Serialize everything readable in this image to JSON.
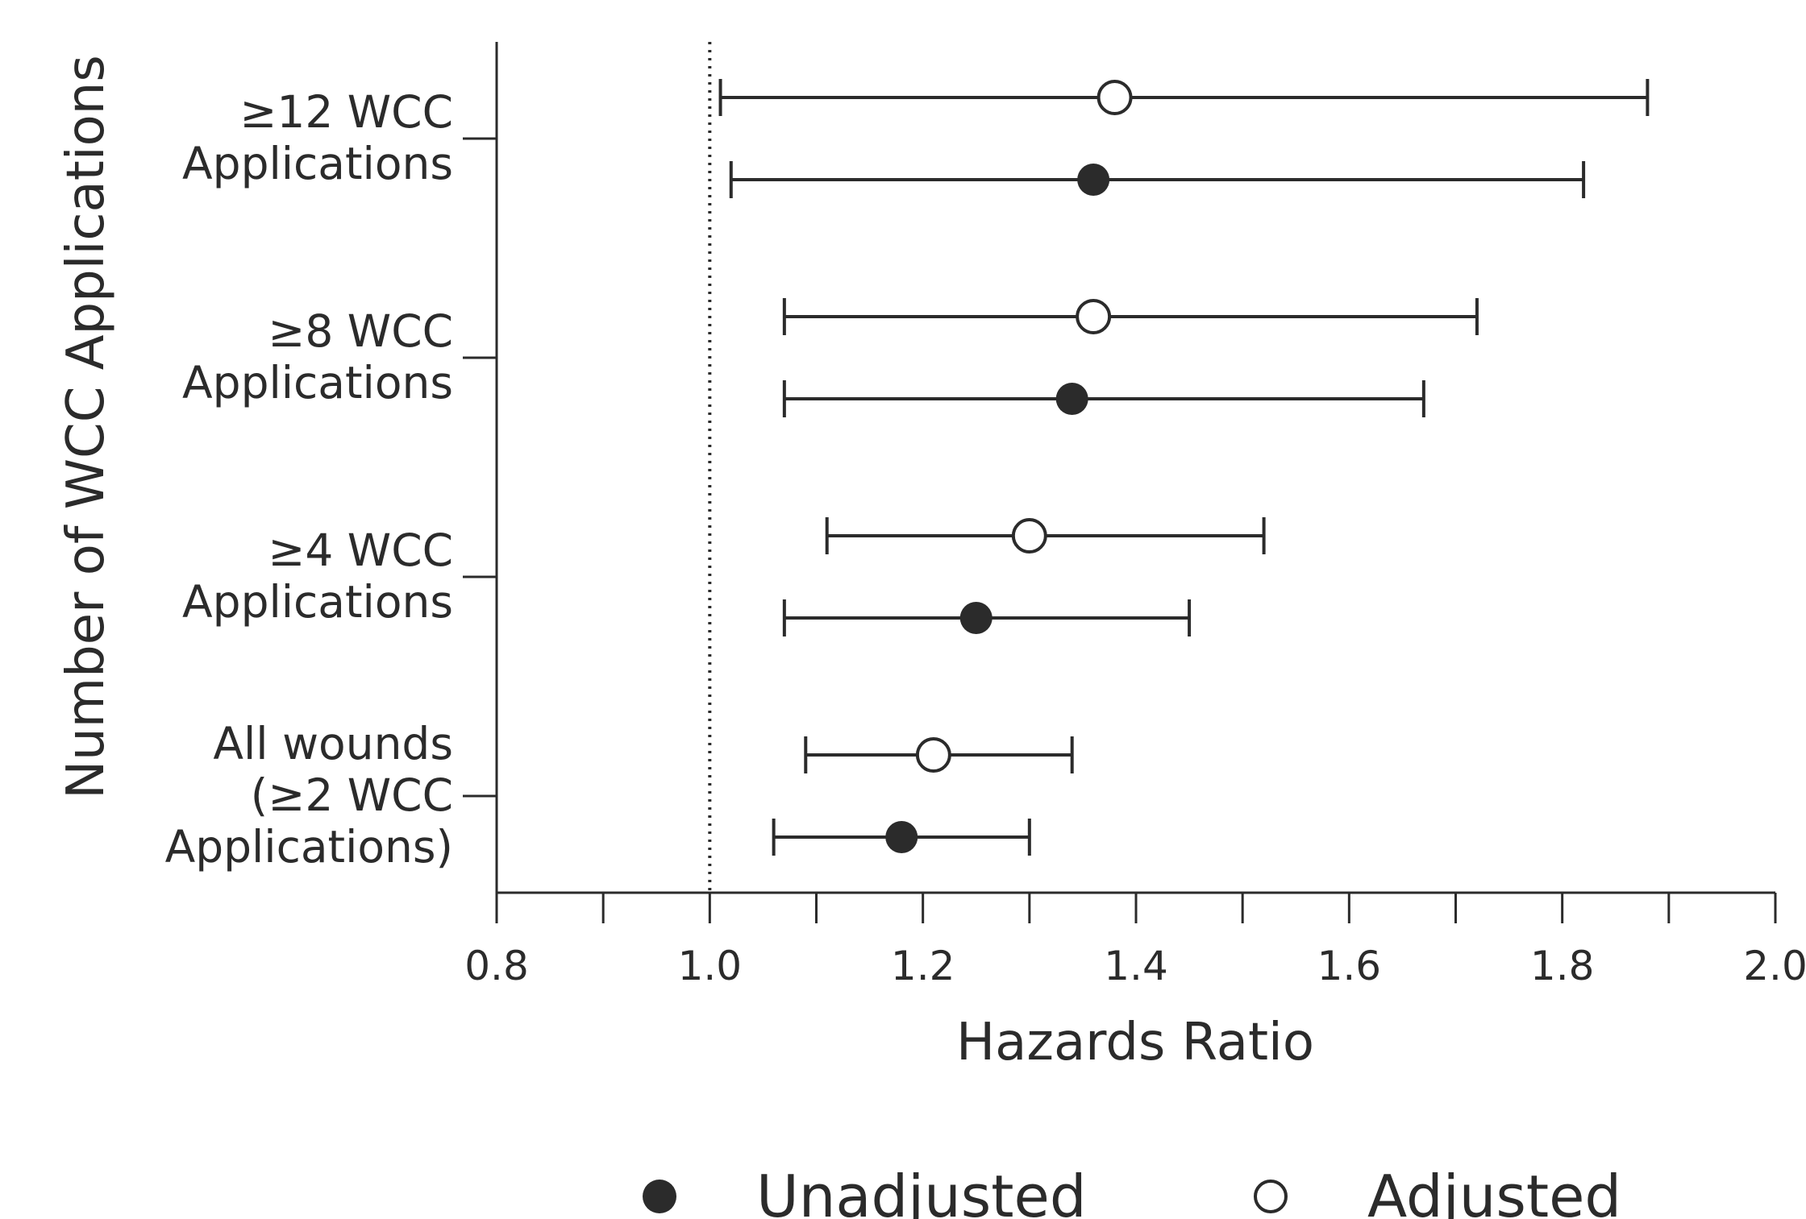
{
  "chart_data": {
    "type": "forest",
    "xlabel": "Hazards Ratio",
    "ylabel": "Number of WCC Applications",
    "xlim": [
      0.8,
      2.0
    ],
    "xticks": [
      "0.8",
      "1.0",
      "1.2",
      "1.4",
      "1.6",
      "1.8",
      "2.0"
    ],
    "reference_line": 1.0,
    "grid": false,
    "legend_position": "bottom",
    "categories": [
      {
        "lines": [
          "≥12 WCC",
          "Applications"
        ]
      },
      {
        "lines": [
          "≥8 WCC",
          "Applications"
        ]
      },
      {
        "lines": [
          "≥4 WCC",
          "Applications"
        ]
      },
      {
        "lines": [
          "All wounds",
          "(≥2 WCC",
          "Applications)"
        ]
      }
    ],
    "series": [
      {
        "name": "Adjusted",
        "marker": "open-circle",
        "points": [
          {
            "estimate": 1.38,
            "lower": 1.01,
            "upper": 1.88
          },
          {
            "estimate": 1.36,
            "lower": 1.07,
            "upper": 1.72
          },
          {
            "estimate": 1.3,
            "lower": 1.11,
            "upper": 1.52
          },
          {
            "estimate": 1.21,
            "lower": 1.09,
            "upper": 1.34
          }
        ]
      },
      {
        "name": "Unadjusted",
        "marker": "filled-circle",
        "points": [
          {
            "estimate": 1.36,
            "lower": 1.02,
            "upper": 1.82
          },
          {
            "estimate": 1.34,
            "lower": 1.07,
            "upper": 1.67
          },
          {
            "estimate": 1.25,
            "lower": 1.07,
            "upper": 1.45
          },
          {
            "estimate": 1.18,
            "lower": 1.06,
            "upper": 1.3
          }
        ]
      }
    ],
    "legend": [
      {
        "name": "Unadjusted",
        "marker": "filled-circle"
      },
      {
        "name": "Adjusted",
        "marker": "open-circle"
      }
    ],
    "colors": {
      "ink": "#2b2b2b",
      "background": "#ffffff"
    }
  }
}
